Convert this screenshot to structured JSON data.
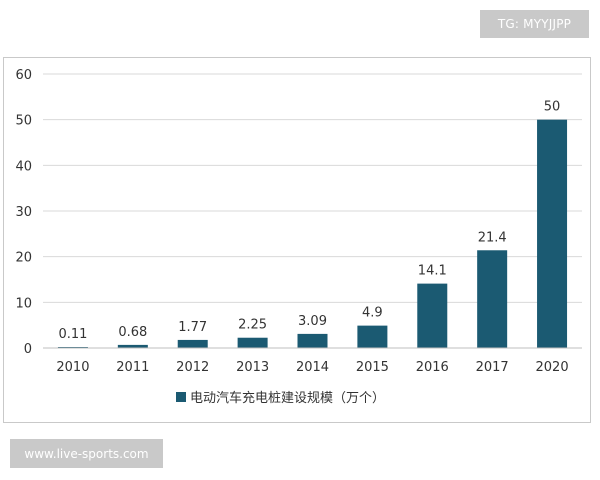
{
  "watermark_top": "TG: MYYJJPP",
  "watermark_bottom": "www.live-sports.com",
  "chart_data": {
    "type": "bar",
    "title": "",
    "xlabel": "",
    "ylabel": "",
    "categories": [
      "2010",
      "2011",
      "2012",
      "2013",
      "2014",
      "2015",
      "2016",
      "2017",
      "2020"
    ],
    "values": [
      0.11,
      0.68,
      1.77,
      2.25,
      3.09,
      4.9,
      14.1,
      21.4,
      50
    ],
    "data_labels": [
      "0.11",
      "0.68",
      "1.77",
      "2.25",
      "3.09",
      "4.9",
      "14.1",
      "21.4",
      "50"
    ],
    "ylim": [
      0,
      60
    ],
    "yticks": [
      0,
      10,
      20,
      30,
      40,
      50,
      60
    ],
    "grid": true,
    "legend": {
      "label": "电动汽车充电桩建设规模（万个）",
      "position": "bottom"
    },
    "color": "#1b5a72"
  }
}
